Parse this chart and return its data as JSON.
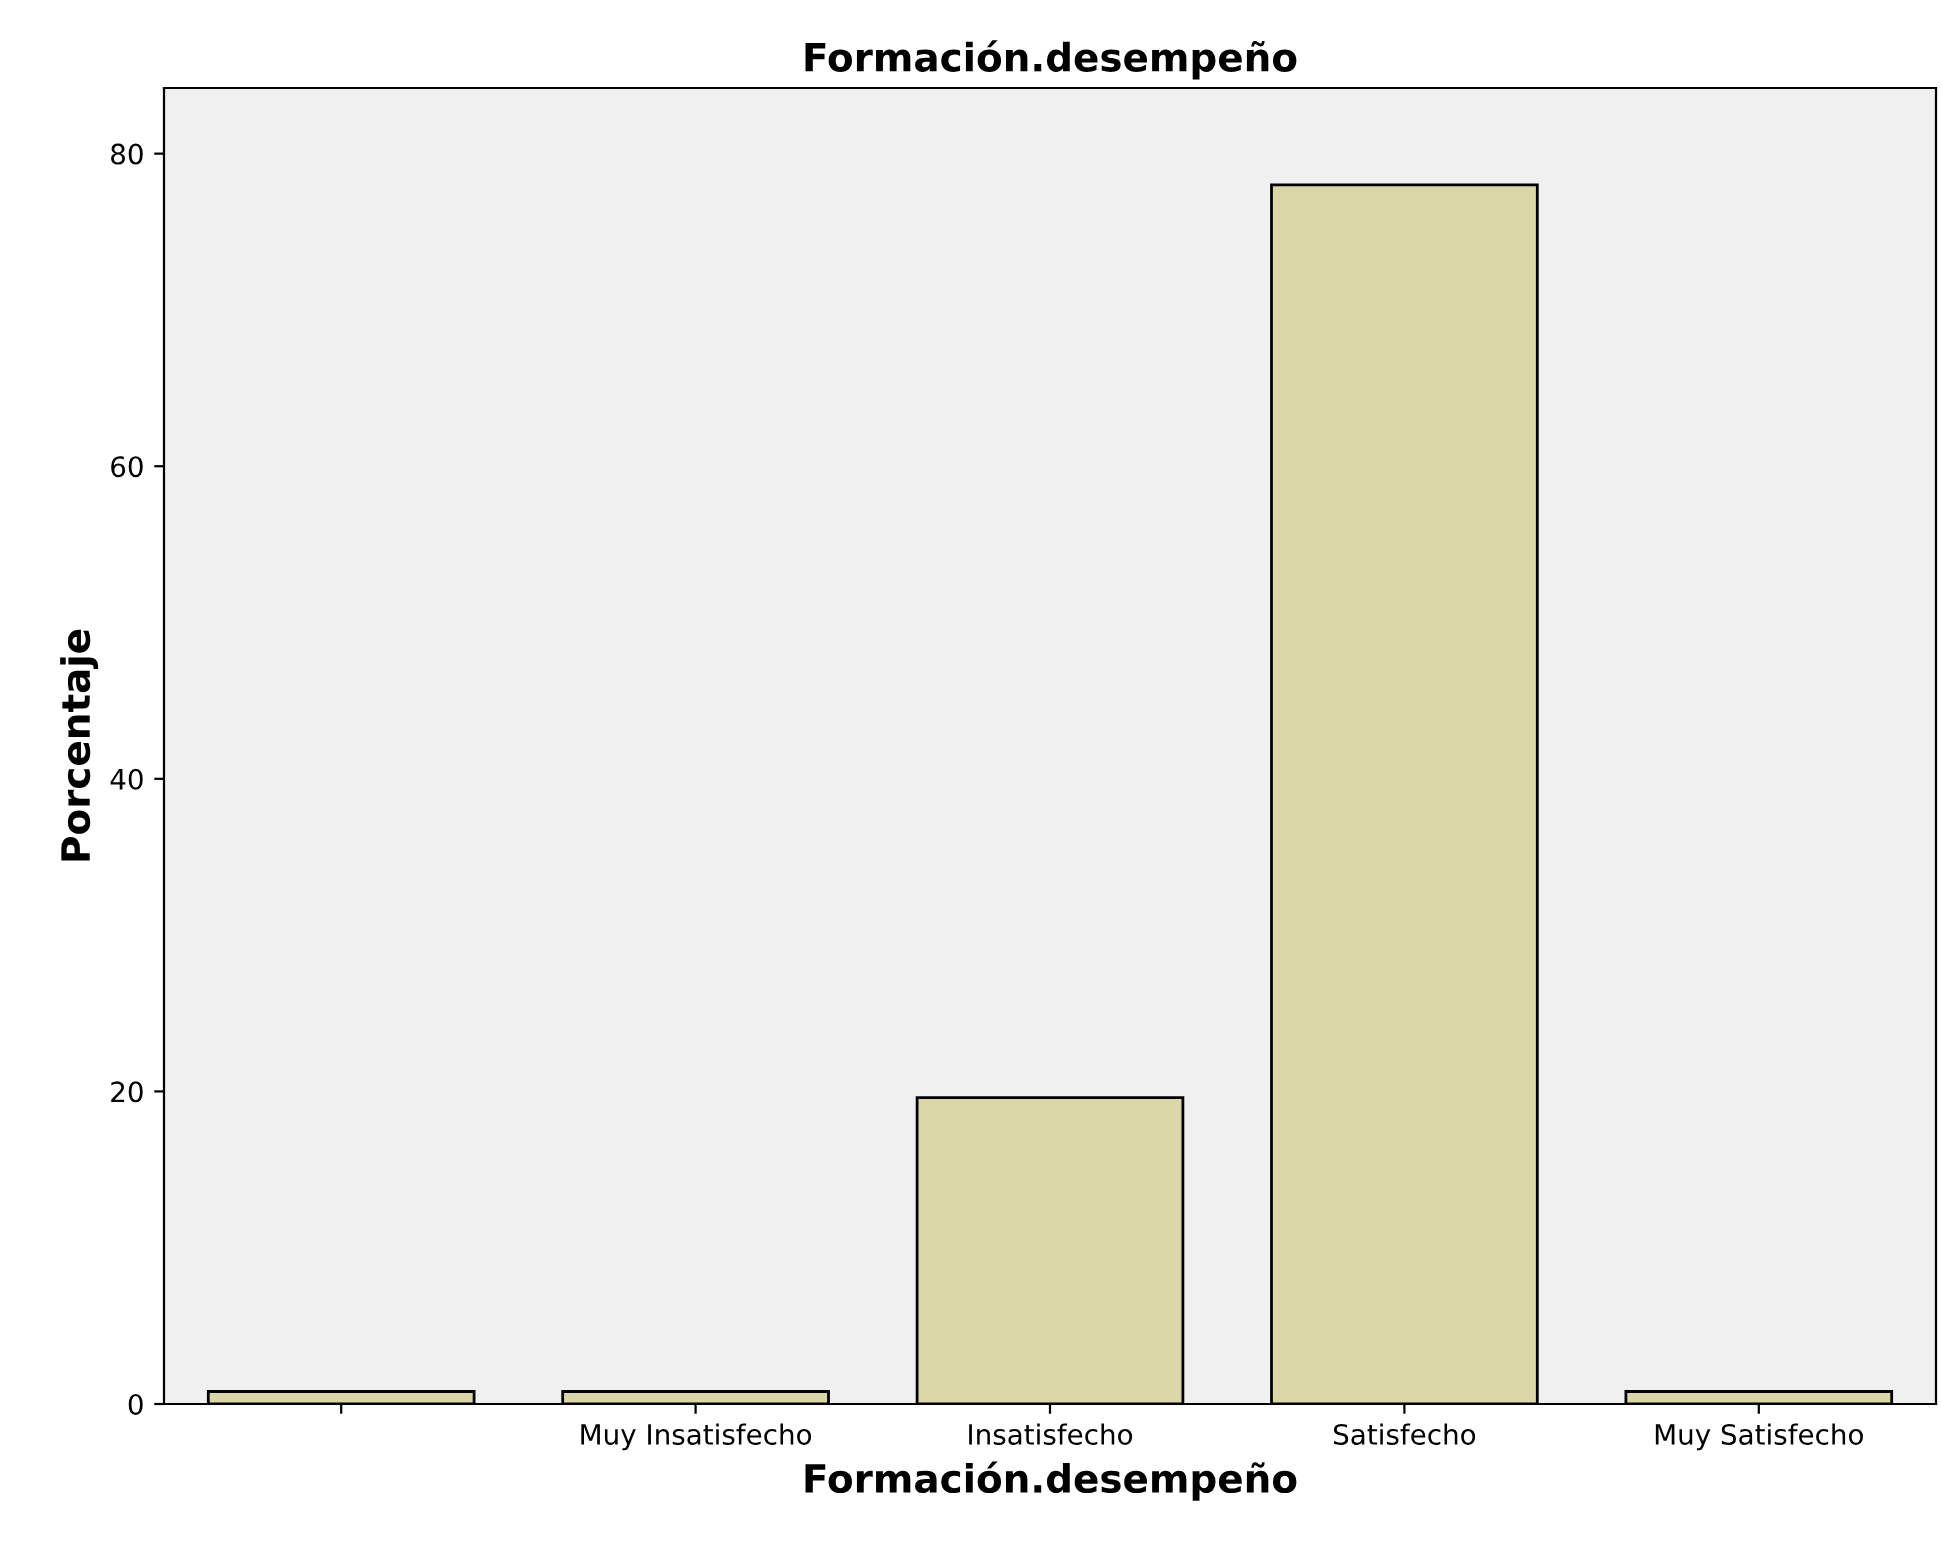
{
  "chart_data": {
    "type": "bar",
    "title": "Formación.desempeño",
    "xlabel": "Formación.desempeño",
    "ylabel": "Porcentaje",
    "categories": [
      null,
      "Muy Insatisfecho",
      "Insatisfecho",
      "Satisfecho",
      "Muy Satisfecho"
    ],
    "values": [
      0.8,
      0.8,
      19.6,
      78.0,
      0.8
    ],
    "color": "#dad6a8",
    "ylim": [
      0,
      84.2
    ],
    "yticks": [
      0,
      20,
      40,
      60,
      80
    ],
    "grid": false
  }
}
